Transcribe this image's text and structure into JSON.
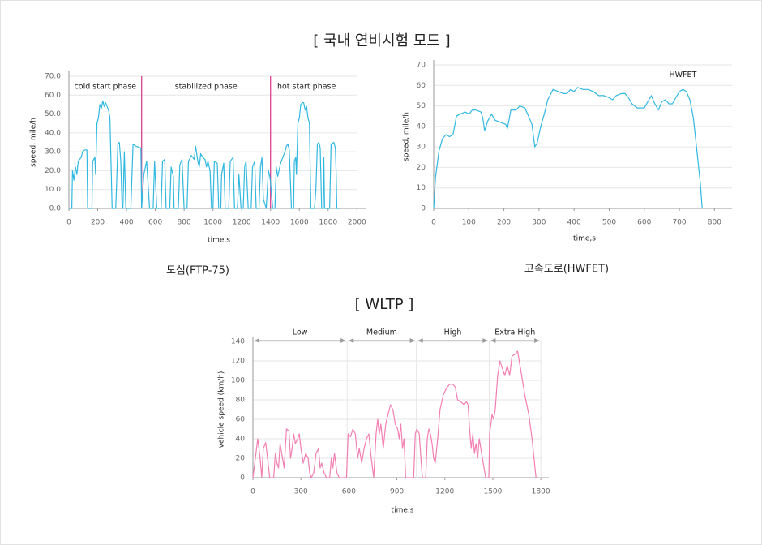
{
  "heading": "[ 국내 연비시험 모드 ]",
  "chart_data": [
    {
      "type": "line",
      "caption": "도심(FTP-75)",
      "xlabel": "time,s",
      "ylabel": "speed, mile/h",
      "xlim": [
        0,
        2060
      ],
      "xticks": [
        0,
        200,
        400,
        600,
        800,
        1000,
        1200,
        1400,
        1600,
        1800,
        2000
      ],
      "ylim": [
        0,
        70
      ],
      "yticks": [
        {
          "value": 0,
          "label": "0.0"
        },
        {
          "value": 10,
          "label": "10.0"
        },
        {
          "value": 20,
          "label": "20.0"
        },
        {
          "value": 30,
          "label": "30.0"
        },
        {
          "value": 40,
          "label": "40.0"
        },
        {
          "value": 50,
          "label": "50.0"
        },
        {
          "value": 60,
          "label": "60.0"
        },
        {
          "value": 70,
          "label": "70.0"
        }
      ],
      "grid": true,
      "phase_color": "#d6338a",
      "phases": [
        {
          "label": "cold start phase",
          "start": 0,
          "end": 505
        },
        {
          "label": "stabilized phase",
          "start": 505,
          "end": 1400
        },
        {
          "label": "hot start phase",
          "start": 1400,
          "end": 1900
        }
      ],
      "x": [
        0,
        20,
        25,
        35,
        45,
        55,
        65,
        85,
        95,
        110,
        125,
        130,
        160,
        165,
        180,
        185,
        195,
        205,
        215,
        225,
        235,
        245,
        255,
        265,
        275,
        285,
        300,
        325,
        330,
        340,
        350,
        360,
        370,
        375,
        385,
        395,
        430,
        445,
        465,
        500,
        505,
        520,
        540,
        560,
        585,
        595,
        610,
        640,
        650,
        665,
        675,
        700,
        710,
        725,
        730,
        760,
        770,
        785,
        800,
        820,
        830,
        850,
        870,
        880,
        895,
        905,
        915,
        930,
        945,
        955,
        965,
        980,
        990,
        1000,
        1010,
        1030,
        1040,
        1055,
        1060,
        1075,
        1085,
        1110,
        1120,
        1140,
        1150,
        1170,
        1180,
        1195,
        1210,
        1220,
        1230,
        1245,
        1265,
        1275,
        1290,
        1300,
        1320,
        1330,
        1340,
        1350,
        1370,
        1385,
        1395,
        1400,
        1415,
        1430,
        1440,
        1450,
        1470,
        1490,
        1500,
        1510,
        1520,
        1530,
        1545,
        1560,
        1565,
        1575,
        1580,
        1590,
        1600,
        1610,
        1620,
        1630,
        1640,
        1650,
        1660,
        1670,
        1680,
        1705,
        1715,
        1725,
        1735,
        1745,
        1755,
        1765,
        1770,
        1775,
        1810,
        1820,
        1840,
        1850,
        1855,
        1860,
        1875
      ],
      "series": [
        {
          "color": "#31b8e0",
          "values": [
            0,
            0,
            20,
            15,
            22,
            18,
            25,
            27,
            30,
            31,
            31,
            0,
            0,
            25,
            27,
            18,
            45,
            48,
            55,
            53,
            57,
            54,
            56,
            54,
            52,
            48,
            0,
            0,
            10,
            34,
            35,
            25,
            0,
            0,
            30,
            0,
            0,
            34,
            33,
            32,
            0,
            18,
            25,
            0,
            0,
            25,
            0,
            0,
            25,
            26,
            0,
            0,
            22,
            17,
            0,
            0,
            23,
            26,
            0,
            0,
            25,
            28,
            26,
            33,
            25,
            22,
            29,
            27,
            26,
            22,
            25,
            20,
            0,
            0,
            25,
            24,
            0,
            0,
            18,
            24,
            0,
            0,
            25,
            27,
            0,
            0,
            18,
            0,
            0,
            22,
            25,
            0,
            0,
            22,
            25,
            0,
            0,
            22,
            27,
            5,
            0,
            20,
            17,
            14,
            0,
            0,
            22,
            17,
            24,
            28,
            30,
            33,
            34,
            31,
            0,
            0,
            25,
            27,
            18,
            45,
            48,
            55,
            56,
            56,
            52,
            54,
            48,
            45,
            0,
            0,
            10,
            34,
            35,
            32,
            0,
            0,
            27,
            0,
            0,
            34,
            35,
            32,
            20,
            0,
            0
          ]
        }
      ]
    },
    {
      "type": "line",
      "caption": "고속도로(HWFET)",
      "xlabel": "time,s",
      "ylabel": "speed, mile/h",
      "xlim": [
        0,
        850
      ],
      "xticks": [
        0,
        100,
        200,
        300,
        400,
        500,
        600,
        700,
        800
      ],
      "ylim": [
        0,
        70
      ],
      "yticks": [
        0,
        10,
        20,
        30,
        40,
        50,
        60,
        70
      ],
      "grid": true,
      "annotations": [
        {
          "text": "HWFET",
          "x": 710,
          "y": 65
        }
      ],
      "x": [
        0,
        5,
        15,
        25,
        35,
        45,
        55,
        65,
        75,
        90,
        100,
        110,
        120,
        135,
        140,
        145,
        155,
        165,
        175,
        190,
        205,
        210,
        220,
        235,
        245,
        260,
        270,
        280,
        288,
        295,
        305,
        315,
        325,
        340,
        355,
        370,
        380,
        390,
        400,
        410,
        425,
        440,
        455,
        470,
        485,
        500,
        510,
        520,
        535,
        545,
        555,
        565,
        580,
        600,
        610,
        620,
        630,
        640,
        650,
        660,
        670,
        680,
        690,
        700,
        710,
        720,
        730,
        740,
        750,
        760,
        765
      ],
      "series": [
        {
          "color": "#31b8e0",
          "values": [
            0,
            15,
            28,
            34,
            36,
            35,
            36,
            45,
            46,
            47,
            46,
            48,
            48,
            47,
            44,
            38,
            43,
            46,
            43,
            42,
            41,
            39,
            48,
            48,
            50,
            49,
            45,
            41,
            30,
            32,
            40,
            46,
            53,
            58,
            57,
            56,
            56,
            58,
            57,
            59,
            58,
            58,
            57,
            55,
            55,
            54,
            53,
            55,
            56,
            56,
            54,
            51,
            49,
            49,
            52,
            55,
            51,
            48,
            52,
            53,
            51,
            51,
            54,
            57,
            58,
            57,
            53,
            44,
            28,
            12,
            0
          ]
        }
      ]
    },
    {
      "type": "line",
      "title": "[ WLTP ]",
      "xlabel": "time,s",
      "ylabel": "vehicle speed (km/h)",
      "xlim": [
        0,
        1850
      ],
      "xticks": [
        0,
        300,
        600,
        900,
        1200,
        1500,
        1800
      ],
      "ylim": [
        0,
        140
      ],
      "yticks": [
        0,
        20,
        40,
        60,
        80,
        100,
        120,
        140
      ],
      "grid": true,
      "phases": [
        {
          "label": "Low",
          "start": 0,
          "end": 589
        },
        {
          "label": "Medium",
          "start": 589,
          "end": 1022
        },
        {
          "label": "High",
          "start": 1022,
          "end": 1477
        },
        {
          "label": "Extra High",
          "start": 1477,
          "end": 1800
        }
      ],
      "x": [
        0,
        15,
        30,
        45,
        55,
        65,
        80,
        95,
        105,
        130,
        140,
        150,
        160,
        170,
        185,
        195,
        210,
        225,
        235,
        245,
        255,
        265,
        280,
        290,
        300,
        315,
        330,
        345,
        355,
        365,
        380,
        395,
        410,
        420,
        430,
        445,
        460,
        480,
        490,
        500,
        510,
        525,
        540,
        575,
        585,
        595,
        610,
        625,
        640,
        655,
        665,
        680,
        695,
        710,
        725,
        740,
        755,
        770,
        780,
        790,
        800,
        815,
        830,
        845,
        860,
        875,
        890,
        905,
        915,
        925,
        935,
        945,
        955,
        1005,
        1015,
        1025,
        1040,
        1050,
        1060,
        1080,
        1090,
        1100,
        1110,
        1120,
        1130,
        1140,
        1155,
        1170,
        1190,
        1210,
        1230,
        1250,
        1265,
        1280,
        1300,
        1320,
        1335,
        1345,
        1355,
        1365,
        1375,
        1385,
        1395,
        1405,
        1415,
        1430,
        1445,
        1455,
        1475,
        1480,
        1495,
        1505,
        1515,
        1530,
        1545,
        1560,
        1575,
        1590,
        1605,
        1620,
        1640,
        1655,
        1665,
        1675,
        1700,
        1725,
        1745,
        1770
      ],
      "series": [
        {
          "color": "#f27fb2",
          "values": [
            0,
            20,
            40,
            20,
            0,
            30,
            36,
            15,
            0,
            0,
            25,
            15,
            10,
            35,
            20,
            10,
            50,
            48,
            20,
            30,
            45,
            35,
            40,
            45,
            30,
            15,
            25,
            20,
            5,
            0,
            5,
            25,
            30,
            10,
            15,
            5,
            0,
            0,
            20,
            10,
            25,
            5,
            0,
            0,
            0,
            45,
            42,
            50,
            45,
            20,
            30,
            15,
            30,
            40,
            45,
            20,
            0,
            45,
            60,
            45,
            55,
            30,
            55,
            65,
            75,
            70,
            55,
            50,
            40,
            55,
            30,
            40,
            0,
            0,
            45,
            50,
            45,
            20,
            0,
            0,
            40,
            50,
            45,
            35,
            20,
            15,
            40,
            70,
            85,
            92,
            96,
            96,
            93,
            80,
            78,
            75,
            78,
            75,
            50,
            30,
            45,
            25,
            35,
            20,
            40,
            25,
            10,
            0,
            0,
            45,
            65,
            60,
            70,
            105,
            120,
            112,
            105,
            115,
            105,
            125,
            127,
            130,
            120,
            110,
            85,
            65,
            40,
            0
          ]
        }
      ]
    }
  ]
}
